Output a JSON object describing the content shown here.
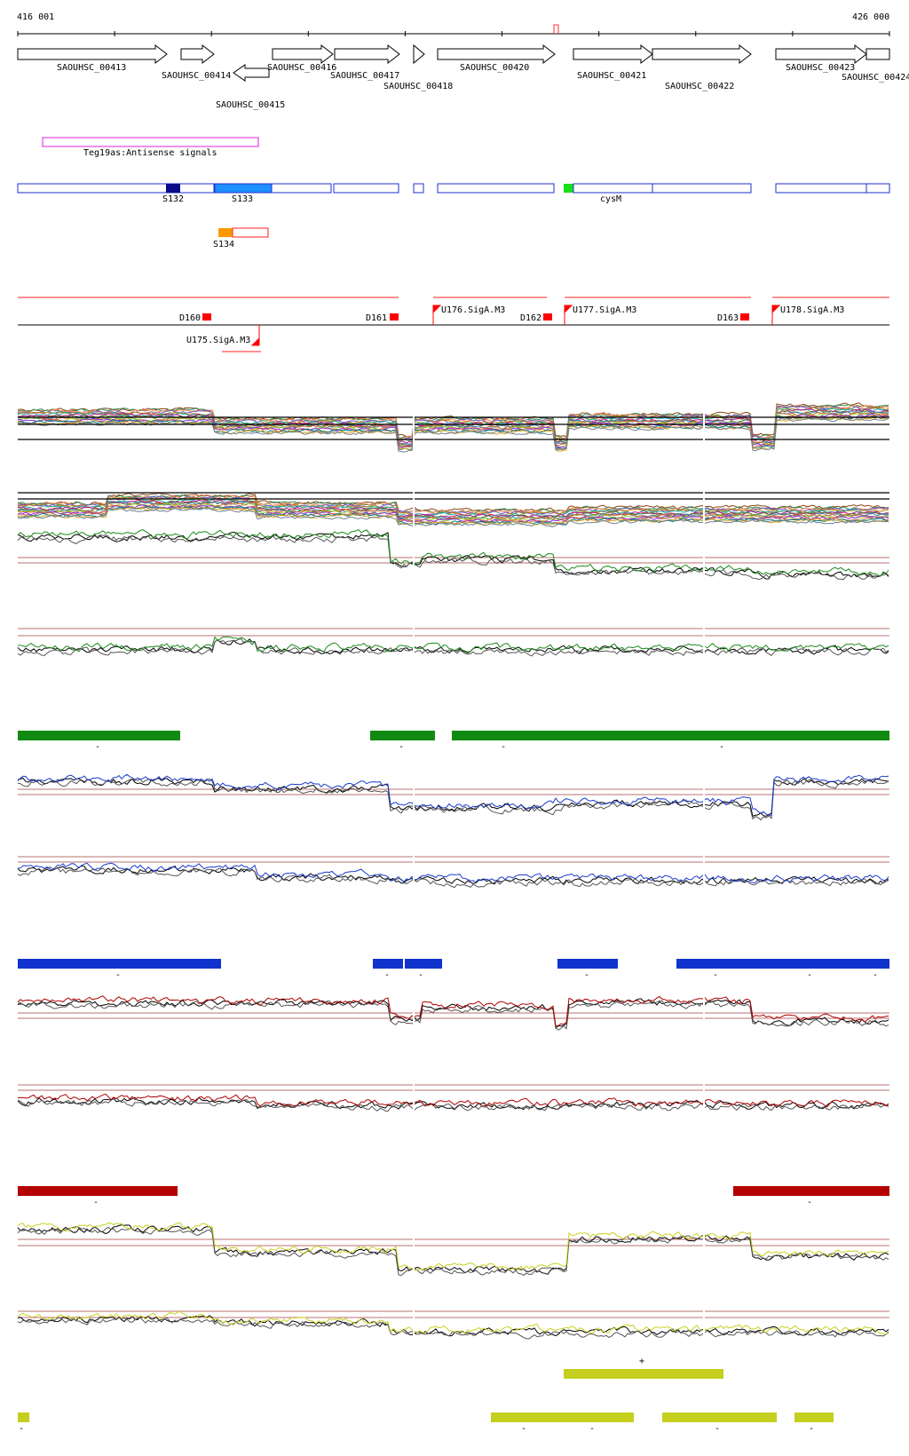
{
  "coords": {
    "start": "416 001",
    "end": "426 000"
  },
  "genes": [
    {
      "name": "SAOUHSC_00413",
      "strand": "+",
      "start": 416001,
      "end": 417860
    },
    {
      "name": "SAOUHSC_00414",
      "strand": "+",
      "start": 418000,
      "end": 418370
    },
    {
      "name": "SAOUHSC_00415",
      "strand": "-",
      "start": 418470,
      "end": 418870
    },
    {
      "name": "SAOUHSC_00416",
      "strand": "+",
      "start": 418870,
      "end": 419570
    },
    {
      "name": "SAOUHSC_00417",
      "strand": "+",
      "start": 419590,
      "end": 420340
    },
    {
      "name": "SAOUHSC_00418",
      "strand": "+",
      "start": 420700,
      "end": 420820
    },
    {
      "name": "SAOUHSC_00420",
      "strand": "+",
      "start": 421060,
      "end": 422400
    },
    {
      "name": "SAOUHSC_00421",
      "strand": "+",
      "start": 422470,
      "end": 423370
    },
    {
      "name": "SAOUHSC_00422",
      "strand": "+",
      "start": 423370,
      "end": 424530
    },
    {
      "name": "SAOUHSC_00423",
      "strand": "+",
      "start": 424930,
      "end": 425970
    },
    {
      "name": "SAOUHSC_00424",
      "strand": "+",
      "start": 425970,
      "end": 426000
    }
  ],
  "features": {
    "teg_label": "Teg19as:Antisense signals",
    "cysm_label": "cysM",
    "segments": [
      "S132",
      "S133",
      "S134"
    ],
    "downshifts": [
      "D160",
      "D161",
      "D162",
      "D163"
    ],
    "upshifts": [
      "U175.SigA.M3",
      "U176.SigA.M3",
      "U177.SigA.M3",
      "U178.SigA.M3"
    ]
  },
  "colors": {
    "gene": "#000000",
    "teg": "#e020e0",
    "segment": "#1f2fd0",
    "s132": "#0a0a8a",
    "s133": "#1e90ff",
    "cysm": "#18e018",
    "s134": "#ff9900",
    "shift": "#ff0000",
    "condition_green": "#1a8a1a",
    "condition_blue": "#1a3acc",
    "condition_red": "#b00000",
    "condition_yellow": "#c8d21e",
    "baseline": "#a04040"
  },
  "bar_tracks": [
    {
      "color": "green",
      "signs": [
        "-",
        "-",
        "-",
        "-"
      ]
    },
    {
      "color": "blue",
      "signs": [
        "-",
        "-",
        "-",
        "-",
        "-",
        "-",
        "-"
      ]
    },
    {
      "color": "red",
      "signs": [
        "-",
        "-"
      ]
    },
    {
      "color": "yellow",
      "signs": [
        "+",
        "-",
        "-",
        "-",
        "-",
        "-"
      ]
    }
  ]
}
